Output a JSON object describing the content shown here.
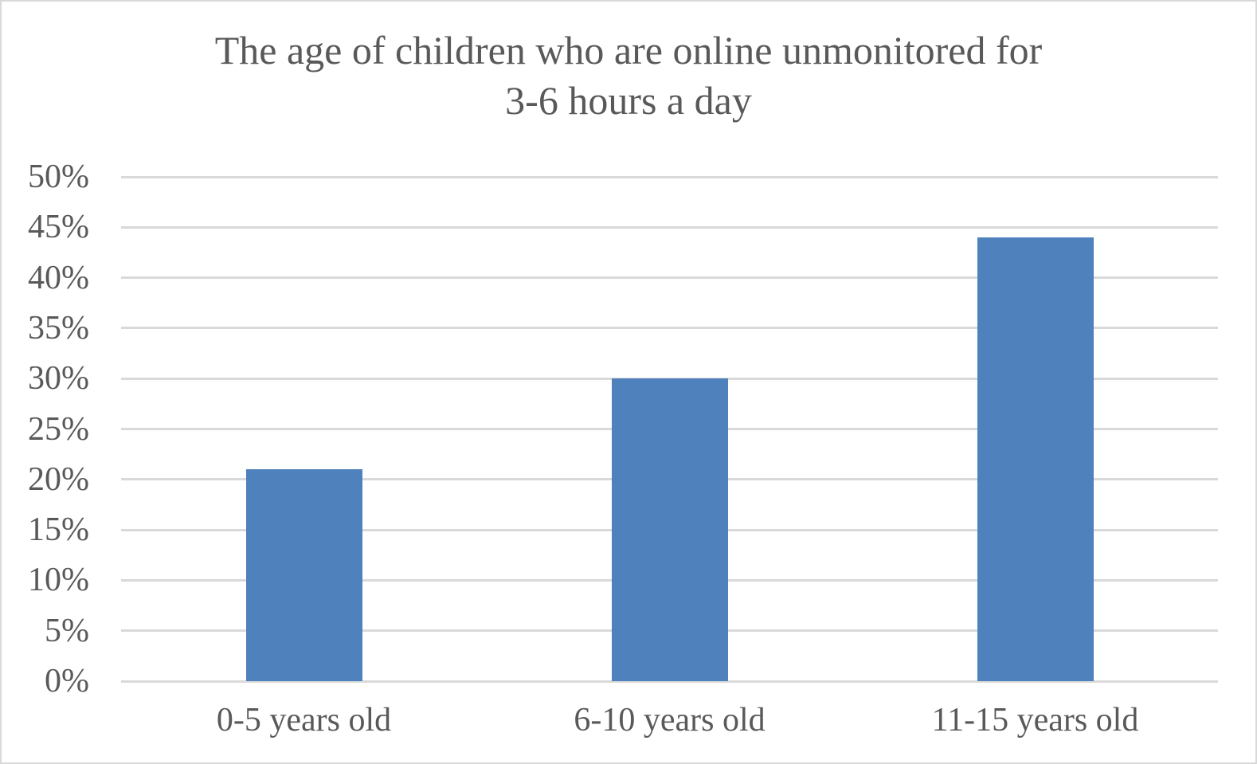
{
  "chart_data": {
    "type": "bar",
    "title": "The age of children who are online unmonitored for 3-6 hours a day",
    "title_lines": [
      "The age of children who are online unmonitored for",
      "3-6 hours a day"
    ],
    "categories": [
      "0-5 years old",
      "6-10 years old",
      "11-15 years old"
    ],
    "values": [
      21,
      30,
      44
    ],
    "value_unit": "%",
    "xlabel": "",
    "ylabel": "",
    "ylim": [
      0,
      50
    ],
    "ytick_values": [
      0,
      5,
      10,
      15,
      20,
      25,
      30,
      35,
      40,
      45,
      50
    ],
    "ytick_labels": [
      "0%",
      "5%",
      "10%",
      "15%",
      "20%",
      "25%",
      "30%",
      "35%",
      "40%",
      "45%",
      "50%"
    ],
    "grid": true,
    "legend": "none",
    "colors": {
      "bar": "#4f81bd",
      "gridline": "#d9d9d9",
      "text": "#595959",
      "frame_border": "#d9d9d9",
      "background": "#ffffff"
    }
  }
}
